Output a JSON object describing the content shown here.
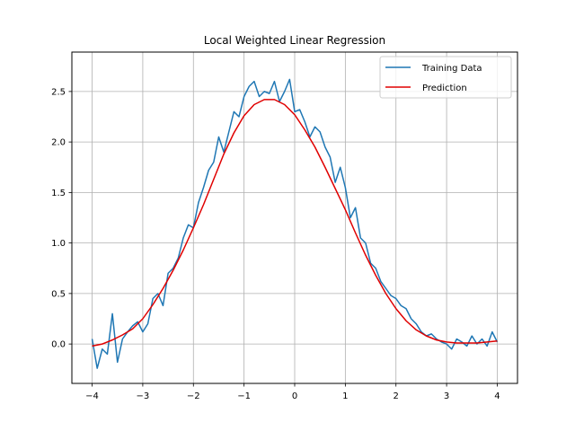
{
  "chart_data": {
    "type": "line",
    "title": "Local Weighted Linear Regression",
    "xlabel": "",
    "ylabel": "",
    "xlim": [
      -4.4,
      4.4
    ],
    "ylim": [
      -0.39,
      2.89
    ],
    "xticks": [
      -4,
      -3,
      -2,
      -1,
      0,
      1,
      2,
      3,
      4
    ],
    "yticks": [
      0.0,
      0.5,
      1.0,
      1.5,
      2.0,
      2.5
    ],
    "ytick_labels": [
      "0.0",
      "0.5",
      "1.0",
      "1.5",
      "2.0",
      "2.5"
    ],
    "grid": true,
    "legend_position": "top-right",
    "series": [
      {
        "name": "Training Data",
        "color": "#1f77b4",
        "x": [
          -4.0,
          -3.9,
          -3.8,
          -3.7,
          -3.6,
          -3.5,
          -3.4,
          -3.3,
          -3.2,
          -3.1,
          -3.0,
          -2.9,
          -2.8,
          -2.7,
          -2.6,
          -2.5,
          -2.4,
          -2.3,
          -2.2,
          -2.1,
          -2.0,
          -1.9,
          -1.8,
          -1.7,
          -1.6,
          -1.5,
          -1.4,
          -1.3,
          -1.2,
          -1.1,
          -1.0,
          -0.9,
          -0.8,
          -0.7,
          -0.6,
          -0.5,
          -0.4,
          -0.3,
          -0.2,
          -0.1,
          0.0,
          0.1,
          0.2,
          0.3,
          0.4,
          0.5,
          0.6,
          0.7,
          0.8,
          0.9,
          1.0,
          1.1,
          1.2,
          1.3,
          1.4,
          1.5,
          1.6,
          1.7,
          1.8,
          1.9,
          2.0,
          2.1,
          2.2,
          2.3,
          2.4,
          2.5,
          2.6,
          2.7,
          2.8,
          2.9,
          3.0,
          3.1,
          3.2,
          3.3,
          3.4,
          3.5,
          3.6,
          3.7,
          3.8,
          3.9,
          4.0
        ],
        "y": [
          0.05,
          -0.24,
          -0.05,
          -0.1,
          0.3,
          -0.18,
          0.05,
          0.12,
          0.18,
          0.22,
          0.12,
          0.2,
          0.45,
          0.5,
          0.38,
          0.7,
          0.75,
          0.85,
          1.05,
          1.18,
          1.15,
          1.4,
          1.55,
          1.72,
          1.8,
          2.05,
          1.9,
          2.1,
          2.3,
          2.25,
          2.45,
          2.55,
          2.6,
          2.45,
          2.5,
          2.48,
          2.6,
          2.4,
          2.5,
          2.62,
          2.3,
          2.32,
          2.2,
          2.05,
          2.15,
          2.1,
          1.95,
          1.85,
          1.6,
          1.75,
          1.55,
          1.25,
          1.35,
          1.05,
          1.0,
          0.8,
          0.75,
          0.62,
          0.55,
          0.48,
          0.45,
          0.38,
          0.35,
          0.25,
          0.2,
          0.12,
          0.08,
          0.1,
          0.05,
          0.02,
          0.0,
          -0.05,
          0.05,
          0.02,
          -0.02,
          0.08,
          0.0,
          0.05,
          -0.02,
          0.12,
          0.02
        ]
      },
      {
        "name": "Prediction",
        "color": "#e00000",
        "x": [
          -4.0,
          -3.8,
          -3.6,
          -3.4,
          -3.2,
          -3.0,
          -2.8,
          -2.6,
          -2.4,
          -2.2,
          -2.0,
          -1.8,
          -1.6,
          -1.4,
          -1.2,
          -1.0,
          -0.8,
          -0.6,
          -0.4,
          -0.2,
          0.0,
          0.2,
          0.4,
          0.6,
          0.8,
          1.0,
          1.2,
          1.4,
          1.6,
          1.8,
          2.0,
          2.2,
          2.4,
          2.6,
          2.8,
          3.0,
          3.2,
          3.4,
          3.6,
          3.8,
          4.0
        ],
        "y": [
          -0.02,
          0.0,
          0.04,
          0.09,
          0.15,
          0.25,
          0.39,
          0.55,
          0.73,
          0.93,
          1.15,
          1.38,
          1.63,
          1.88,
          2.09,
          2.26,
          2.37,
          2.42,
          2.42,
          2.37,
          2.27,
          2.12,
          1.95,
          1.75,
          1.54,
          1.33,
          1.1,
          0.88,
          0.68,
          0.5,
          0.35,
          0.23,
          0.14,
          0.08,
          0.04,
          0.02,
          0.01,
          0.01,
          0.01,
          0.02,
          0.03
        ]
      }
    ]
  }
}
